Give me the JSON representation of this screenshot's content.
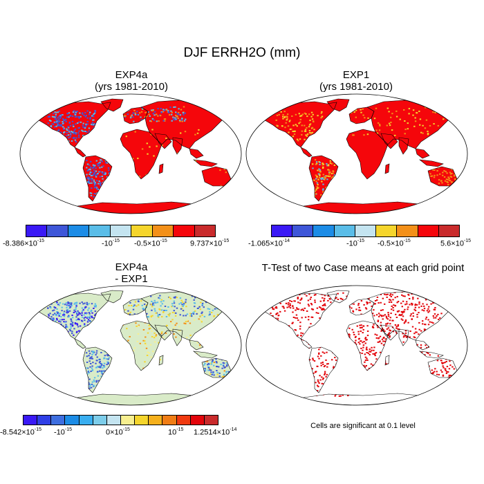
{
  "figure": {
    "title": "DJF ERRH2O (mm)"
  },
  "panels": [
    {
      "id": "exp4a",
      "title_line1": "EXP4a",
      "title_line2": "(yrs 1981-2010)",
      "colorbar": {
        "colors": [
          "#3a19f5",
          "#3e56d8",
          "#1c8ce6",
          "#5abde8",
          "#c4e4f0",
          "#f5d52c",
          "#f39019",
          "#f5060b",
          "#c92b2c"
        ],
        "labels": [
          {
            "mant": "-8.386×10",
            "exp": "-15"
          },
          {
            "mant": "-10",
            "exp": "-15"
          },
          {
            "mant": "-0.5×10",
            "exp": "-15"
          },
          {
            "mant": "9.737×10",
            "exp": "-15"
          }
        ]
      }
    },
    {
      "id": "exp1",
      "title_line1": "EXP1",
      "title_line2": "(yrs 1981-2010)",
      "colorbar": {
        "colors": [
          "#3a19f5",
          "#3e56d8",
          "#1c8ce6",
          "#5abde8",
          "#c4e4f0",
          "#f5d52c",
          "#f39019",
          "#f5060b",
          "#c92b2c"
        ],
        "labels": [
          {
            "mant": "-1.065×10",
            "exp": "-14"
          },
          {
            "mant": "-10",
            "exp": "-15"
          },
          {
            "mant": "-0.5×10",
            "exp": "-15"
          },
          {
            "mant": "5.6×10",
            "exp": "-15"
          }
        ]
      }
    },
    {
      "id": "diff",
      "title_line1": "EXP4a",
      "title_line2": "- EXP1",
      "colorbar": {
        "colors": [
          "#3a19f5",
          "#2f3fe6",
          "#3e6ee0",
          "#1c8ce6",
          "#39aef0",
          "#7dcdea",
          "#c4e4f0",
          "#f7ef90",
          "#f5d52c",
          "#f5b01c",
          "#f07d15",
          "#f03a10",
          "#e3050b",
          "#c92b2c"
        ],
        "labels": [
          {
            "mant": "-8.542×10",
            "exp": "-15"
          },
          {
            "mant": "-10",
            "exp": "-15"
          },
          {
            "mant": "0×10",
            "exp": "-15"
          },
          {
            "mant": "10",
            "exp": "-15"
          },
          {
            "mant": "1.2514×10",
            "exp": "-14"
          }
        ]
      }
    },
    {
      "id": "ttest",
      "title_line1": "T-Test of two Case means at each grid point",
      "note": "Cells are significant at 0.1 level"
    }
  ],
  "map_colors": {
    "ocean": "#ffffff",
    "land_exp4a": "#f5060b",
    "land_exp1": "#f5060b",
    "land_diff": "#d9ebc8",
    "land_ttest": "#ffffff",
    "sig": "#e3050b",
    "blue": "#3e56d8",
    "light": "#5abde8",
    "orange": "#f39019",
    "yellow": "#f5d52c"
  }
}
